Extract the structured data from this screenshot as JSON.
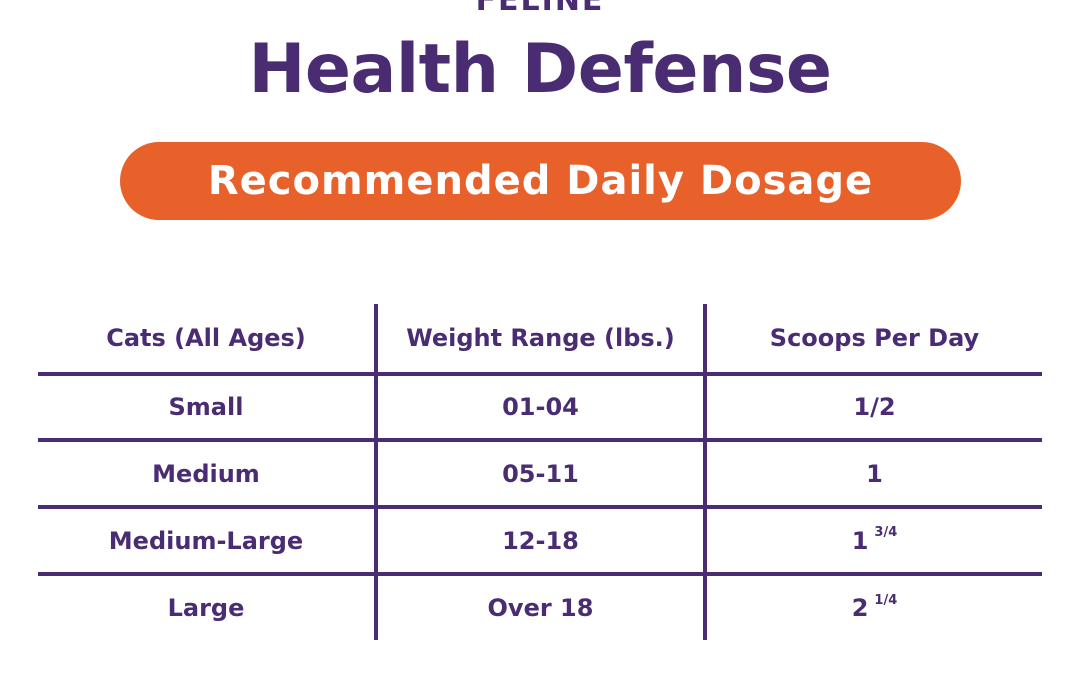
{
  "brand": {
    "subtitle": "FELINE",
    "title": "Health Defense"
  },
  "banner": {
    "label": "Recommended Daily Dosage",
    "color": "#e8602a"
  },
  "colors": {
    "primary": "#4a2c73",
    "accent": "#e8602a"
  },
  "table": {
    "headers": [
      "Cats (All Ages)",
      "Weight Range (lbs.)",
      "Scoops Per Day"
    ],
    "rows": [
      {
        "size": "Small",
        "weight": "01-04",
        "scoops": "1/2",
        "scoops_fraction": ""
      },
      {
        "size": "Medium",
        "weight": "05-11",
        "scoops": "1",
        "scoops_fraction": ""
      },
      {
        "size": "Medium-Large",
        "weight": "12-18",
        "scoops": "1",
        "scoops_fraction": "3/4"
      },
      {
        "size": "Large",
        "weight": "Over 18",
        "scoops": "2",
        "scoops_fraction": "1/4"
      }
    ]
  }
}
